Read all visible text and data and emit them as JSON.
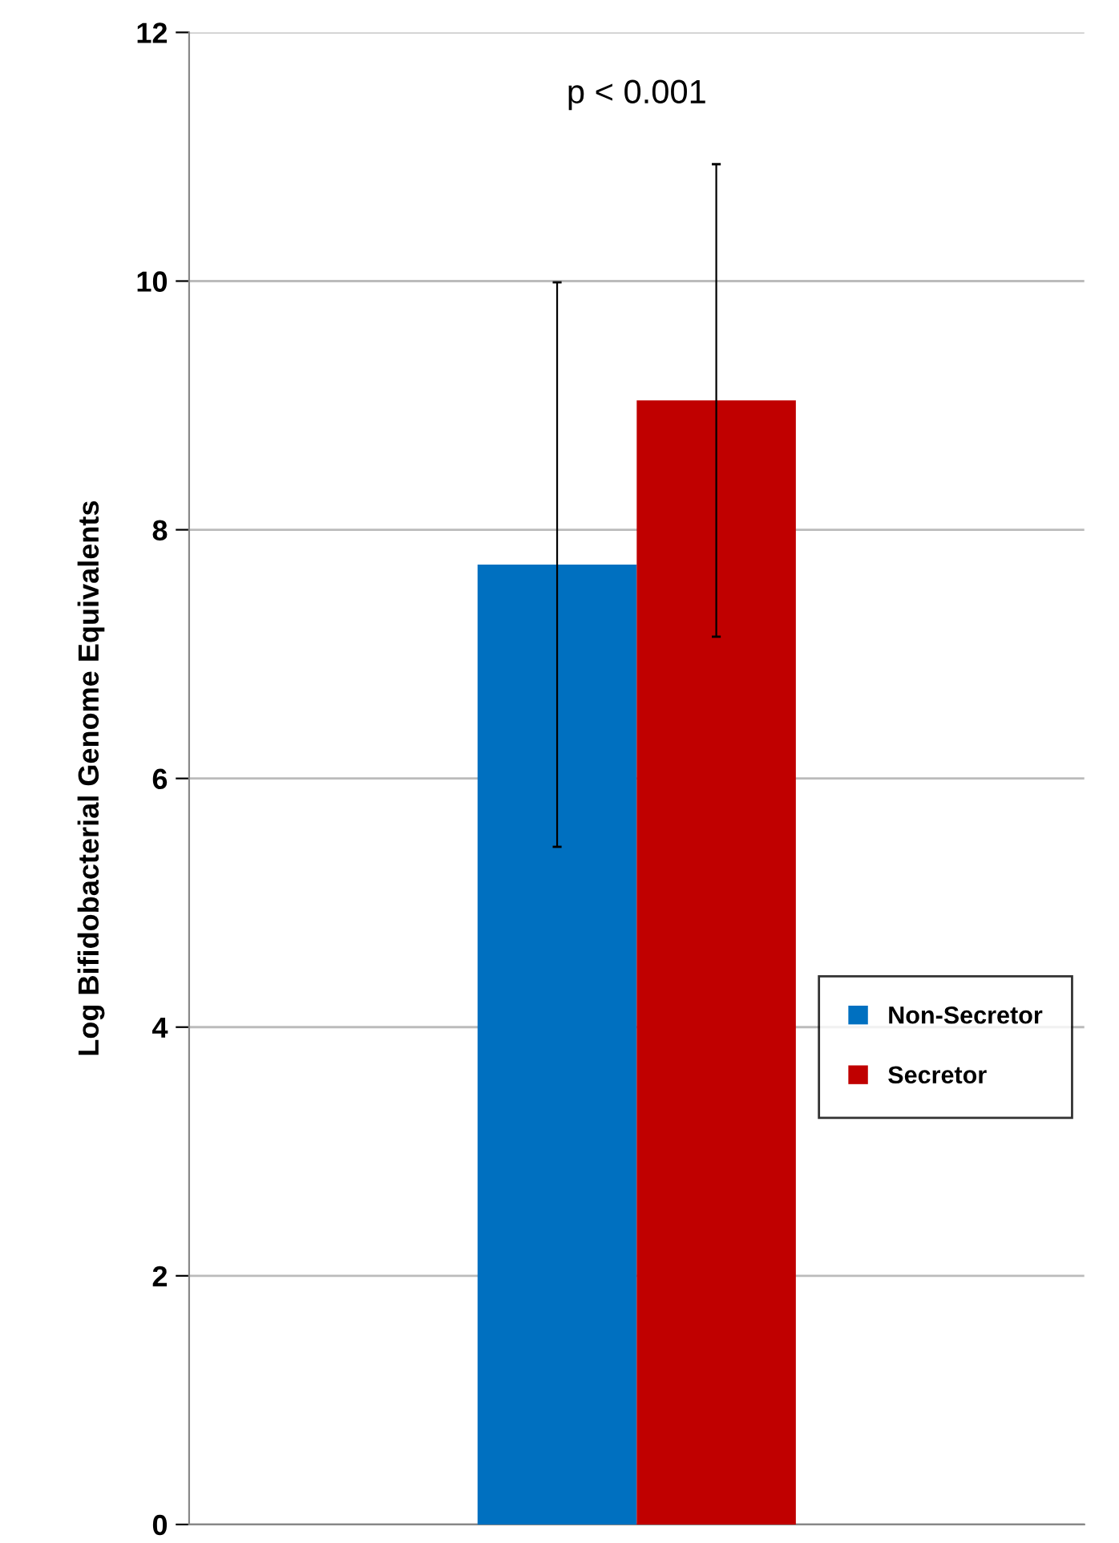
{
  "chart_data": {
    "type": "bar",
    "ylabel": "Log Bifidobacterial Genome Equivalents",
    "categories": [
      null
    ],
    "series": [
      {
        "name": "Non-Secretor",
        "color": "#0070c0",
        "values": [
          7.72
        ],
        "errors": [
          2.27
        ]
      },
      {
        "name": "Secretor",
        "color": "#c00000",
        "values": [
          9.04
        ],
        "errors": [
          1.9
        ]
      }
    ],
    "ylim": [
      0,
      12
    ],
    "yticks": [
      0,
      2,
      4,
      6,
      8,
      10,
      12
    ],
    "grid": "y",
    "legend": "right",
    "tick_labels": "y",
    "annotations": [
      "p < 0.001"
    ]
  }
}
